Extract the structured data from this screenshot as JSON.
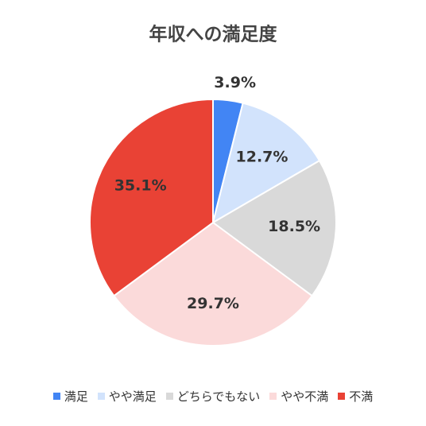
{
  "chart_data": {
    "type": "pie",
    "title": "年収への満足度",
    "categories": [
      "満足",
      "やや満足",
      "どちらでもない",
      "やや不満",
      "不満"
    ],
    "values": [
      3.9,
      12.7,
      18.5,
      29.7,
      35.1
    ],
    "value_labels": [
      "3.9%",
      "12.7%",
      "18.5%",
      "29.7%",
      "35.1%"
    ],
    "colors": [
      "#4285f4",
      "#d2e3fc",
      "#d9d9d9",
      "#fbdada",
      "#e94235"
    ],
    "legend": "bottom"
  }
}
